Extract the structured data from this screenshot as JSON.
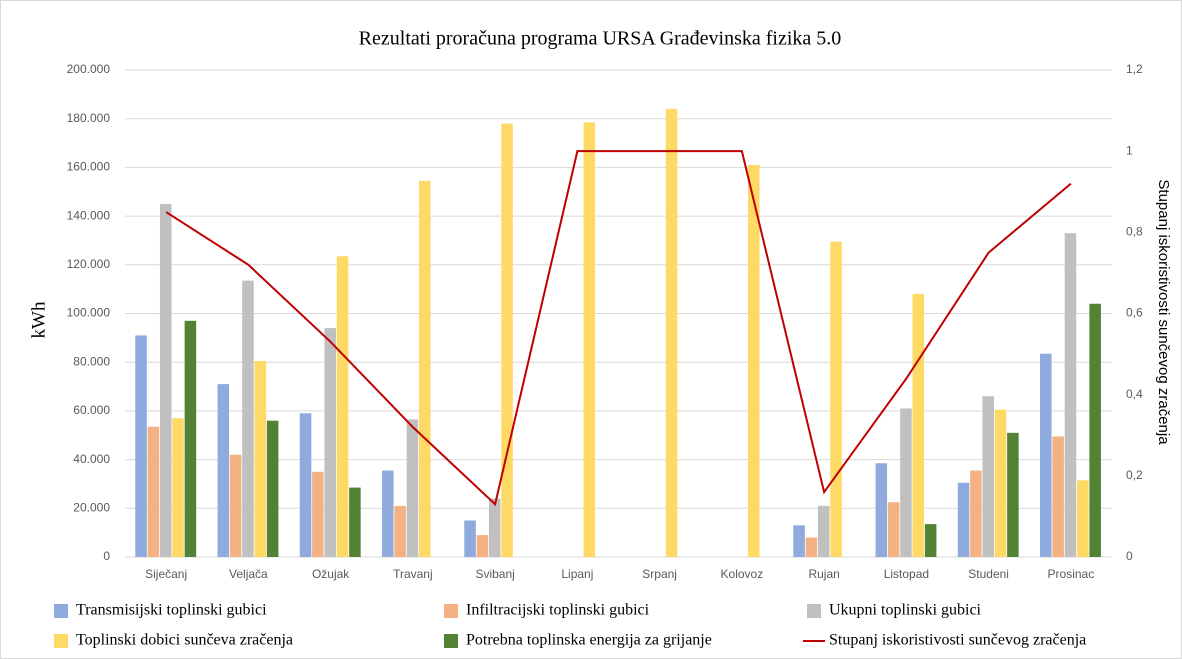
{
  "chart_data": {
    "type": "bar",
    "title": "Rezultati proračuna programa URSA Građevinska fizika 5.0",
    "y_label": "kWh",
    "y2_label": "Stupanj iskoristivosti sunčevog zračenja",
    "categories": [
      "Siječanj",
      "Veljača",
      "Ožujak",
      "Travanj",
      "Svibanj",
      "Lipanj",
      "Srpanj",
      "Kolovoz",
      "Rujan",
      "Listopad",
      "Studeni",
      "Prosinac"
    ],
    "series": [
      {
        "name": "Transmisijski toplinski gubici",
        "color": "#8faadc",
        "type": "bar",
        "values": [
          91000,
          71000,
          59000,
          35500,
          15000,
          0,
          0,
          0,
          13000,
          38500,
          30500,
          83500
        ]
      },
      {
        "name": "Infiltracijski toplinski gubici",
        "color": "#f4b183",
        "type": "bar",
        "values": [
          53500,
          42000,
          35000,
          21000,
          9000,
          0,
          0,
          0,
          8000,
          22500,
          35500,
          49500
        ]
      },
      {
        "name": "Ukupni toplinski gubici",
        "color": "#c0c0c0",
        "type": "bar",
        "values": [
          145000,
          113500,
          94000,
          56500,
          24000,
          0,
          0,
          0,
          21000,
          61000,
          66000,
          133000
        ]
      },
      {
        "name": "Toplinski dobici sunčeva zračenja",
        "color": "#ffd966",
        "type": "bar",
        "values": [
          57000,
          80500,
          123500,
          154500,
          178000,
          178500,
          184000,
          161000,
          129500,
          108000,
          60500,
          31500
        ]
      },
      {
        "name": "Potrebna toplinska energija za grijanje",
        "color": "#548235",
        "type": "bar",
        "values": [
          97000,
          56000,
          28500,
          0,
          0,
          0,
          0,
          0,
          0,
          13500,
          51000,
          104000
        ]
      },
      {
        "name": "Stupanj iskoristivosti sunčevog zračenja",
        "color": "#c00000",
        "type": "line",
        "axis": "y2",
        "values": [
          0.85,
          0.72,
          0.53,
          0.32,
          0.13,
          1,
          1,
          1,
          0.16,
          0.44,
          0.75,
          0.92
        ]
      }
    ],
    "ylim": [
      0,
      200000
    ],
    "yticks": [
      0,
      {
        "value": 20000,
        "label": "20.000"
      },
      {
        "value": 40000,
        "label": "40.000"
      },
      {
        "value": 60000,
        "label": "60.000"
      },
      {
        "value": 80000,
        "label": "80.000"
      },
      {
        "value": 100000,
        "label": "100.000"
      },
      {
        "value": 120000,
        "label": "120.000"
      },
      {
        "value": 140000,
        "label": "140.000"
      },
      {
        "value": 160000,
        "label": "160.000"
      },
      {
        "value": 180000,
        "label": "180.000"
      },
      {
        "value": 200000,
        "label": "200.000"
      }
    ],
    "y2lim": [
      0,
      1.2
    ],
    "y2ticks": [
      0,
      {
        "value": 0.2,
        "label": "0,2"
      },
      {
        "value": 0.4,
        "label": "0,4"
      },
      {
        "value": 0.6,
        "label": "0,6"
      },
      {
        "value": 0.8,
        "label": "0,8"
      },
      1,
      {
        "value": 1.2,
        "label": "1,2"
      }
    ],
    "grid": true,
    "legend": "bottom"
  }
}
